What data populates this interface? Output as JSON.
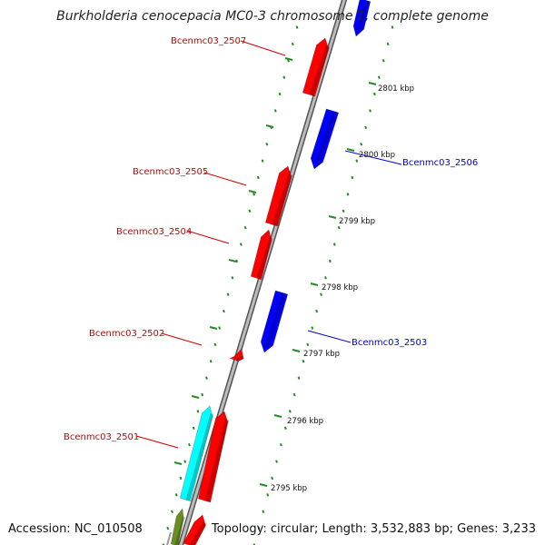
{
  "title": "Burkholderia cenocepacia MC0-3 chromosome 1, complete genome",
  "footer": {
    "accession": "Accession: NC_010508",
    "summary": "Topology: circular; Length: 3,532,883 bp; Genes: 3,233"
  },
  "colors": {
    "forward_gene": "#ff0000",
    "reverse_gene": "#0000ff",
    "cyan_feature": "#00ffff",
    "olive_feature": "#6b8e23",
    "axis": "#8a8a8a",
    "tick": "#228b22",
    "label_forward": "#cc0000",
    "label_reverse": "#0000cc"
  },
  "scale_ticks": [
    "2795 kbp",
    "2796 kbp",
    "2797 kbp",
    "2798 kbp",
    "2799 kbp",
    "2800 kbp",
    "2801 kbp"
  ],
  "gene_labels": [
    {
      "name": "Bcenmc03_2507",
      "strand": "forward"
    },
    {
      "name": "Bcenmc03_2506",
      "strand": "reverse"
    },
    {
      "name": "Bcenmc03_2505",
      "strand": "forward"
    },
    {
      "name": "Bcenmc03_2504",
      "strand": "forward"
    },
    {
      "name": "Bcenmc03_2503",
      "strand": "reverse"
    },
    {
      "name": "Bcenmc03_2502",
      "strand": "forward"
    },
    {
      "name": "Bcenmc03_2501",
      "strand": "forward"
    }
  ]
}
